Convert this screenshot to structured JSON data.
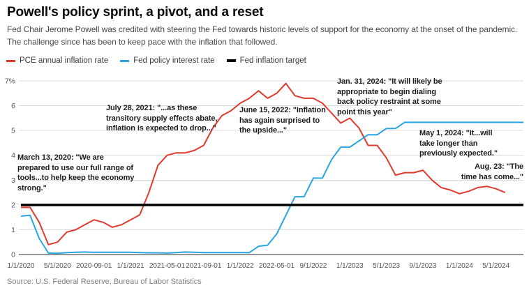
{
  "header": {
    "title": "Powell's policy sprint, a pivot, and a reset",
    "subtitle": "Fed Chair Jerome Powell was credited with steering the Fed towards historic levels of support for the economy at the onset of the pandemic. The challenge since has been to keep pace with the inflation that followed."
  },
  "annotations": [
    {
      "id": "march-2020",
      "lines": [
        "March 13, 2020: \"We are",
        "prepared to use our full range of",
        "tools...to help keep the economy",
        "strong.\""
      ]
    },
    {
      "id": "july-2021",
      "lines": [
        "July 28, 2021: \"...as these",
        "transitory supply effects abate,",
        "inflation is expected to drop...\""
      ]
    },
    {
      "id": "june-2022",
      "lines": [
        "June 15, 2022: \"Inflation",
        "has again surprised to",
        "the upside...\""
      ]
    },
    {
      "id": "jan-2024",
      "lines": [
        "Jan. 31, 2024: \"It will likely be",
        "appropriate to begin dialing",
        "back policy restraint at some",
        "point this year\""
      ]
    },
    {
      "id": "may-2024",
      "lines": [
        "May 1, 2024: \"It...will",
        "take longer than",
        "previously expected.\""
      ]
    },
    {
      "id": "aug-2024",
      "lines": [
        "Aug. 23: \"The",
        "time has come...\""
      ]
    }
  ],
  "source": "Source: U.S. Federal Reserve, Bureau of Labor Statistics",
  "chart_data": {
    "type": "line",
    "title": "Powell's policy sprint, a pivot, and a reset",
    "x_start": "2020-01",
    "x_end": "2024-08",
    "x_unit": "month",
    "grid": true,
    "legend_position": "top",
    "y_axis": {
      "min": 0,
      "max": 7,
      "tick_values": [
        0,
        1,
        2,
        3,
        4,
        5,
        6,
        7
      ],
      "tick_labels": [
        "0",
        "1",
        "2",
        "3",
        "4",
        "5",
        "6",
        "7%"
      ]
    },
    "x_ticks": [
      {
        "m": 0,
        "label": "1/1/2020"
      },
      {
        "m": 4,
        "label": "5/1/2020"
      },
      {
        "m": 8,
        "label": "2020-09-01"
      },
      {
        "m": 12,
        "label": "1/1/2021"
      },
      {
        "m": 16,
        "label": "2021-05-01"
      },
      {
        "m": 20,
        "label": "2021-09-01"
      },
      {
        "m": 24,
        "label": "1/1/2022"
      },
      {
        "m": 28,
        "label": "2022-05-01"
      },
      {
        "m": 32,
        "label": "9/1/2022"
      },
      {
        "m": 36,
        "label": "1/1/2023"
      },
      {
        "m": 40,
        "label": "5/1/2023"
      },
      {
        "m": 44,
        "label": "9/1/2023"
      },
      {
        "m": 48,
        "label": "1/1/2024"
      },
      {
        "m": 52,
        "label": "5/1/2024"
      }
    ],
    "series": [
      {
        "name": "PCE annual inflation rate",
        "color": "#e03a2f",
        "stroke_width": 2,
        "start_month": 0,
        "values": [
          1.9,
          1.9,
          1.3,
          0.4,
          0.5,
          0.9,
          1.0,
          1.2,
          1.4,
          1.3,
          1.1,
          1.2,
          1.4,
          1.6,
          2.5,
          3.6,
          4.0,
          4.1,
          4.1,
          4.2,
          4.4,
          5.1,
          5.6,
          5.8,
          6.1,
          6.3,
          6.6,
          6.3,
          6.5,
          6.9,
          6.4,
          6.3,
          6.3,
          6.1,
          5.7,
          5.3,
          5.5,
          5.1,
          4.4,
          4.4,
          3.9,
          3.2,
          3.3,
          3.3,
          3.4,
          3.0,
          2.7,
          2.6,
          2.45,
          2.55,
          2.7,
          2.75,
          2.65,
          2.5
        ]
      },
      {
        "name": "Fed policy interest rate",
        "color": "#29a5e1",
        "stroke_width": 2,
        "start_month": 0,
        "values": [
          1.55,
          1.58,
          0.65,
          0.06,
          0.05,
          0.08,
          0.09,
          0.1,
          0.09,
          0.09,
          0.09,
          0.09,
          0.09,
          0.08,
          0.07,
          0.07,
          0.06,
          0.08,
          0.1,
          0.09,
          0.08,
          0.08,
          0.08,
          0.08,
          0.08,
          0.08,
          0.33,
          0.38,
          0.83,
          1.58,
          2.33,
          2.33,
          3.08,
          3.08,
          3.83,
          4.33,
          4.33,
          4.58,
          4.83,
          4.83,
          5.08,
          5.08,
          5.33,
          5.33,
          5.33,
          5.33,
          5.33,
          5.33,
          5.33,
          5.33,
          5.33,
          5.33,
          5.33,
          5.33,
          5.33,
          5.33
        ]
      },
      {
        "name": "Fed inflation target",
        "color": "#000000",
        "stroke_width": 3.5,
        "flat_value": 2,
        "start_month": 0,
        "end_month": 55
      }
    ]
  }
}
